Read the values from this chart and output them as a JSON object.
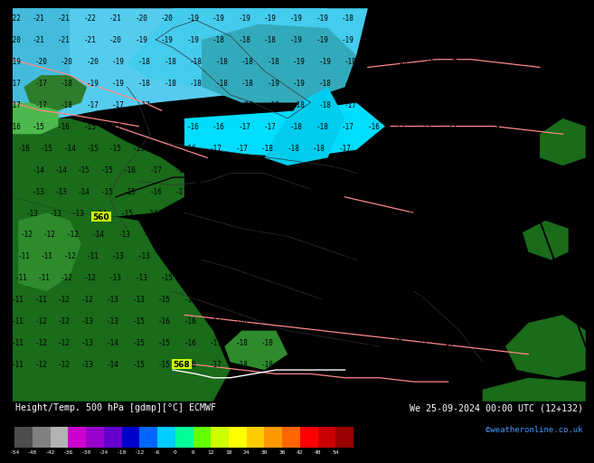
{
  "title_left": "Height/Temp. 500 hPa [gdmp][°C] ECMWF",
  "title_right": "We 25-09-2024 00:00 UTC (12+132)",
  "credit": "©weatheronline.co.uk",
  "colorbar_values": [
    -54,
    -48,
    -42,
    -36,
    -30,
    -24,
    -18,
    -12,
    -6,
    0,
    6,
    12,
    18,
    24,
    30,
    36,
    42,
    48,
    54
  ],
  "colorbar_colors": [
    "#4d4d4d",
    "#808080",
    "#b3b3b3",
    "#cc00cc",
    "#9900cc",
    "#6600cc",
    "#0000cc",
    "#0066ff",
    "#00ccff",
    "#00ff99",
    "#66ff00",
    "#ccff00",
    "#ffff00",
    "#ffcc00",
    "#ff9900",
    "#ff6600",
    "#ff0000",
    "#cc0000",
    "#990000"
  ],
  "bg_cyan": "#00eeff",
  "bg_dark_blue": "#00aadd",
  "bg_light_cyan": "#00ffff",
  "green_dark": "#1a6b1a",
  "green_mid": "#2d8b2d",
  "green_light": "#4db84d"
}
